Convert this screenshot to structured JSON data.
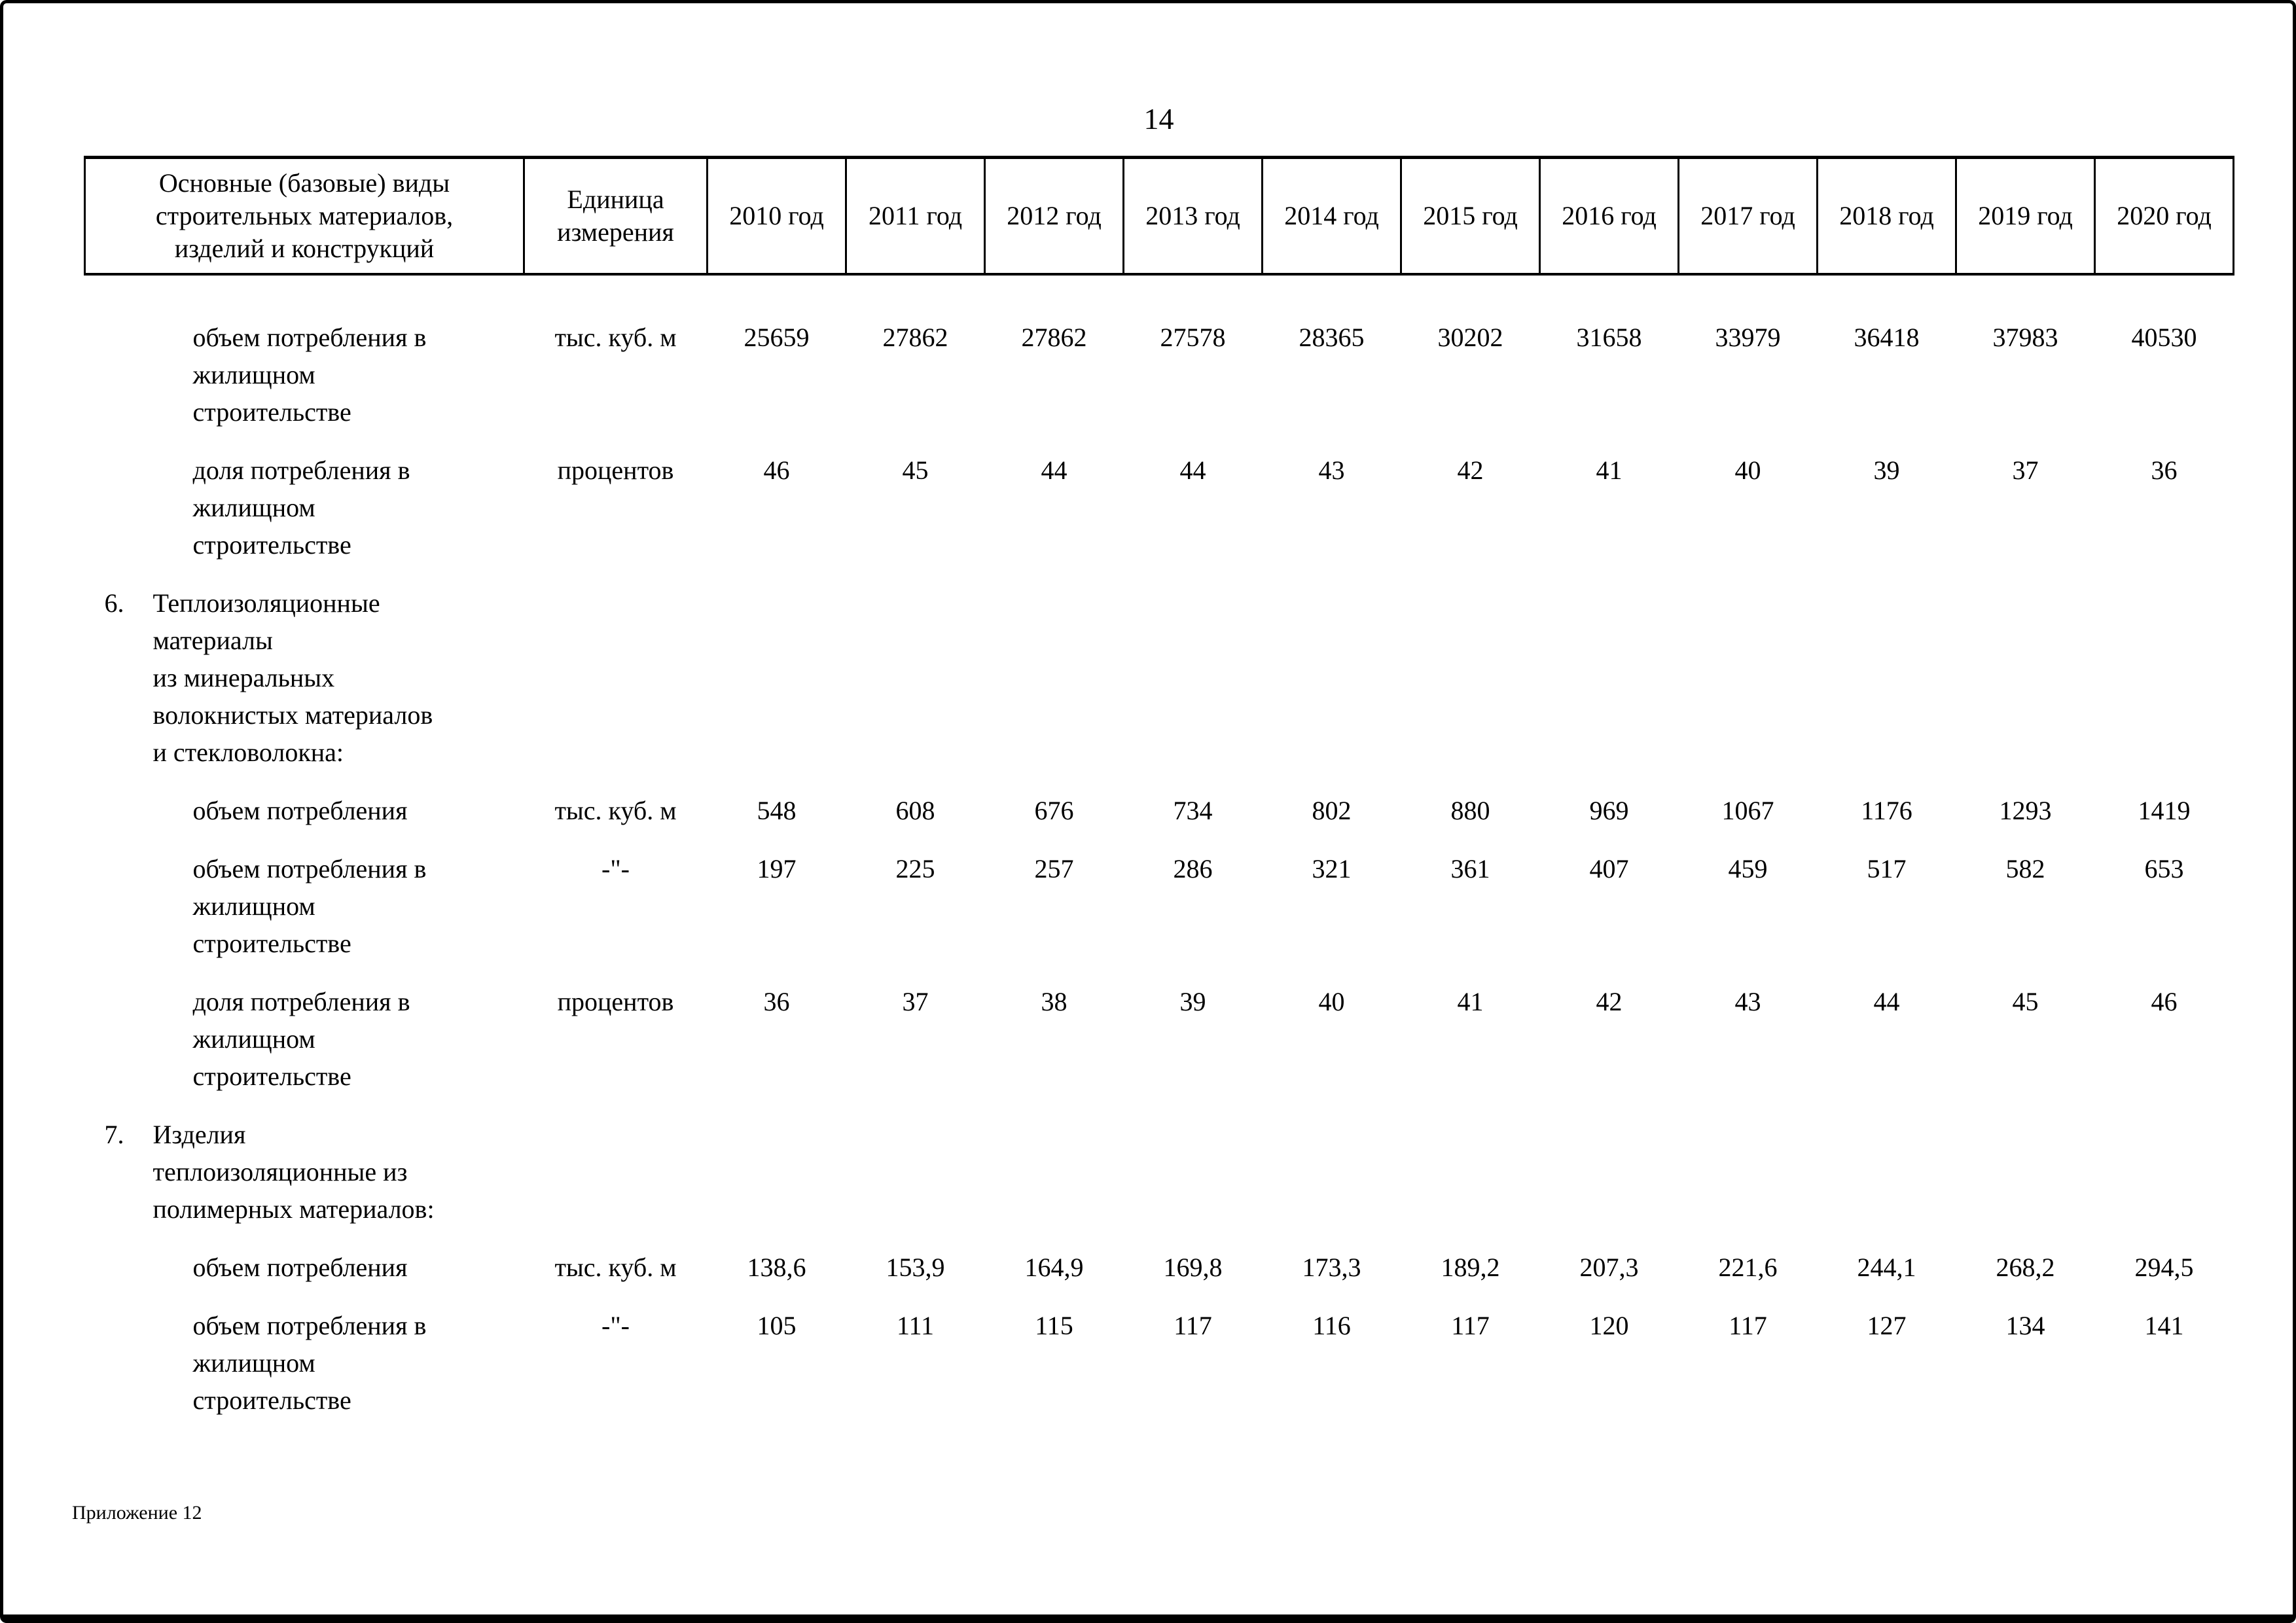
{
  "page": {
    "number": "14",
    "footer": "Приложение 12"
  },
  "table": {
    "headers": {
      "col1": "Основные (базовые) виды\nстроительных материалов,\nизделий и конструкций",
      "col2": "Единица\nизмерения",
      "years": [
        "2010 год",
        "2011 год",
        "2012 год",
        "2013 год",
        "2014 год",
        "2015 год",
        "2016 год",
        "2017 год",
        "2018 год",
        "2019 год",
        "2020 год"
      ]
    },
    "rows": [
      {
        "type": "data",
        "label": "объем потребления в\nжилищном\nстроительстве",
        "unit": "тыс. куб. м",
        "values": [
          "25659",
          "27862",
          "27862",
          "27578",
          "28365",
          "30202",
          "31658",
          "33979",
          "36418",
          "37983",
          "40530"
        ]
      },
      {
        "type": "data",
        "label": "доля потребления в\nжилищном\nстроительстве",
        "unit": "процентов",
        "values": [
          "46",
          "45",
          "44",
          "44",
          "43",
          "42",
          "41",
          "40",
          "39",
          "37",
          "36"
        ]
      },
      {
        "type": "section",
        "num": "6.",
        "label": "Теплоизоляционные\nматериалы\nиз минеральных\nволокнистых материалов\nи стекловолокна:",
        "unit": "",
        "values": [
          "",
          "",
          "",
          "",
          "",
          "",
          "",
          "",
          "",
          "",
          ""
        ]
      },
      {
        "type": "data",
        "label": "объем потребления",
        "unit": "тыс. куб. м",
        "values": [
          "548",
          "608",
          "676",
          "734",
          "802",
          "880",
          "969",
          "1067",
          "1176",
          "1293",
          "1419"
        ]
      },
      {
        "type": "data",
        "label": "объем потребления в\nжилищном\nстроительстве",
        "unit": "-\"-",
        "values": [
          "197",
          "225",
          "257",
          "286",
          "321",
          "361",
          "407",
          "459",
          "517",
          "582",
          "653"
        ]
      },
      {
        "type": "data",
        "label": "доля потребления в\nжилищном\nстроительстве",
        "unit": "процентов",
        "values": [
          "36",
          "37",
          "38",
          "39",
          "40",
          "41",
          "42",
          "43",
          "44",
          "45",
          "46"
        ]
      },
      {
        "type": "section",
        "num": "7.",
        "label": "Изделия\nтеплоизоляционные из\nполимерных материалов:",
        "unit": "",
        "values": [
          "",
          "",
          "",
          "",
          "",
          "",
          "",
          "",
          "",
          "",
          ""
        ]
      },
      {
        "type": "data",
        "label": "объем потребления",
        "unit": "тыс. куб. м",
        "values": [
          "138,6",
          "153,9",
          "164,9",
          "169,8",
          "173,3",
          "189,2",
          "207,3",
          "221,6",
          "244,1",
          "268,2",
          "294,5"
        ]
      },
      {
        "type": "data",
        "label": "объем потребления в\nжилищном\nстроительстве",
        "unit": "-\"-",
        "values": [
          "105",
          "111",
          "115",
          "117",
          "116",
          "117",
          "120",
          "117",
          "127",
          "134",
          "141"
        ]
      }
    ]
  }
}
